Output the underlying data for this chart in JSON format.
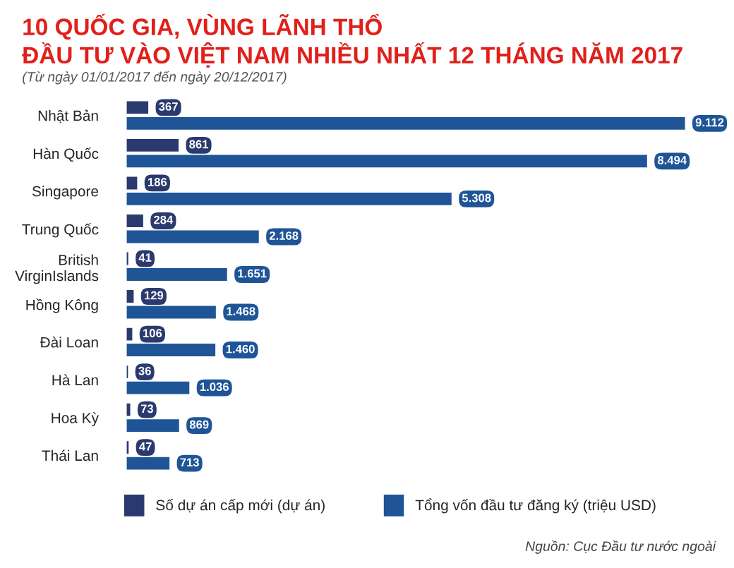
{
  "chart_data": {
    "type": "bar",
    "orientation": "horizontal",
    "title": "10 QUỐC GIA, VÙNG LÃNH THỔ\nĐẦU TƯ VÀO VIỆT NAM NHIỀU NHẤT 12 THÁNG NĂM 2017",
    "subtitle": "(Từ ngày 01/01/2017 đến ngày 20/12/2017)",
    "categories": [
      "Nhật Bản",
      "Hàn Quốc",
      "Singapore",
      "Trung Quốc",
      "British\nVirginIslands",
      "Hồng Kông",
      "Đài Loan",
      "Hà Lan",
      "Hoa Kỳ",
      "Thái Lan"
    ],
    "series": [
      {
        "name": "Số dự án cấp mới (dự án)",
        "color": "#2b3a6e",
        "values": [
          367,
          861,
          186,
          284,
          41,
          129,
          106,
          36,
          73,
          47
        ],
        "value_labels": [
          "367",
          "861",
          "186",
          "284",
          "41",
          "129",
          "106",
          "36",
          "73",
          "47"
        ]
      },
      {
        "name": "Tổng vốn đầu tư đăng ký (triệu USD)",
        "color": "#1f5597",
        "values": [
          9112,
          8494,
          5308,
          2168,
          1651,
          1468,
          1460,
          1036,
          869,
          713
        ],
        "value_labels": [
          "9.112",
          "8.494",
          "5.308",
          "2.168",
          "1.651",
          "1.468",
          "1.460",
          "1.036",
          "869",
          "713"
        ]
      }
    ],
    "legend": "bottom",
    "grid": false,
    "annotations": [
      "Nguồn: Cục Đầu tư nước ngoài"
    ]
  }
}
